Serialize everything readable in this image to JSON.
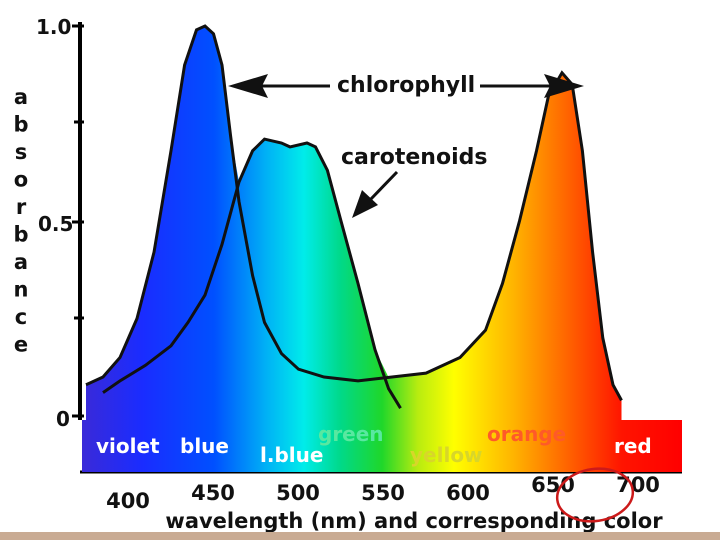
{
  "chart_data": {
    "type": "area",
    "title": "",
    "xlabel": "wavelength (nm) and corresponding color",
    "ylabel": "absorbance",
    "xlim": [
      380,
      700
    ],
    "ylim": [
      0,
      1.0
    ],
    "x_ticks": [
      "400",
      "450",
      "500",
      "550",
      "600",
      "650",
      "700"
    ],
    "y_ticks": [
      "0",
      "0.5",
      "1.0"
    ],
    "series": [
      {
        "name": "chlorophyll",
        "points": [
          [
            380,
            0.08
          ],
          [
            390,
            0.1
          ],
          [
            400,
            0.15
          ],
          [
            410,
            0.25
          ],
          [
            420,
            0.42
          ],
          [
            430,
            0.68
          ],
          [
            438,
            0.9
          ],
          [
            445,
            0.99
          ],
          [
            450,
            1.0
          ],
          [
            455,
            0.98
          ],
          [
            460,
            0.9
          ],
          [
            465,
            0.72
          ],
          [
            470,
            0.55
          ],
          [
            478,
            0.36
          ],
          [
            485,
            0.24
          ],
          [
            495,
            0.16
          ],
          [
            505,
            0.12
          ],
          [
            520,
            0.1
          ],
          [
            540,
            0.09
          ],
          [
            560,
            0.1
          ],
          [
            580,
            0.11
          ],
          [
            600,
            0.15
          ],
          [
            615,
            0.22
          ],
          [
            625,
            0.34
          ],
          [
            635,
            0.5
          ],
          [
            645,
            0.68
          ],
          [
            652,
            0.82
          ],
          [
            660,
            0.88
          ],
          [
            666,
            0.85
          ],
          [
            672,
            0.68
          ],
          [
            678,
            0.42
          ],
          [
            684,
            0.2
          ],
          [
            690,
            0.08
          ],
          [
            695,
            0.04
          ]
        ]
      },
      {
        "name": "carotenoids",
        "points": [
          [
            390,
            0.06
          ],
          [
            400,
            0.09
          ],
          [
            415,
            0.13
          ],
          [
            430,
            0.18
          ],
          [
            440,
            0.24
          ],
          [
            450,
            0.31
          ],
          [
            460,
            0.44
          ],
          [
            470,
            0.6
          ],
          [
            478,
            0.68
          ],
          [
            485,
            0.71
          ],
          [
            495,
            0.7
          ],
          [
            500,
            0.69
          ],
          [
            510,
            0.7
          ],
          [
            515,
            0.69
          ],
          [
            522,
            0.63
          ],
          [
            530,
            0.5
          ],
          [
            540,
            0.34
          ],
          [
            550,
            0.17
          ],
          [
            558,
            0.07
          ],
          [
            565,
            0.02
          ]
        ]
      }
    ],
    "color_bands": [
      {
        "label": "violet",
        "color": "#ffffff"
      },
      {
        "label": "blue",
        "color": "#ffffff"
      },
      {
        "label": "l.blue",
        "color": "#ffffff"
      },
      {
        "label": "green",
        "color": "#59e8a0"
      },
      {
        "label": "yellow",
        "color": "#d8d62a"
      },
      {
        "label": "orange",
        "color": "#ff5a28"
      },
      {
        "label": "red",
        "color": "#ffffff"
      }
    ],
    "annotations": [
      {
        "text": "chlorophyll"
      },
      {
        "text": "carotenoids"
      }
    ],
    "grid": false,
    "legend": "none"
  }
}
